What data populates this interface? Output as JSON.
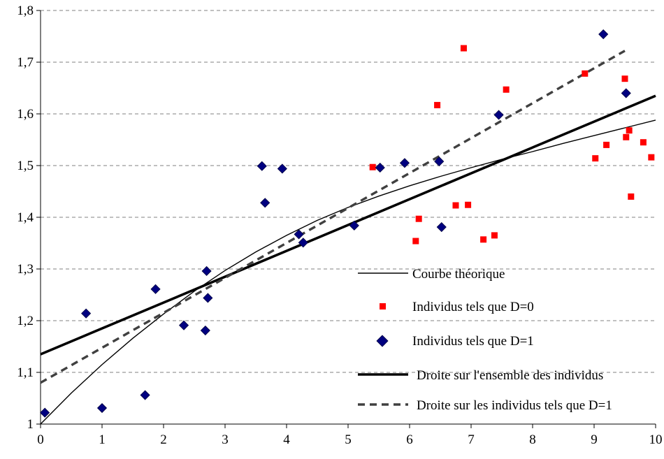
{
  "chart_data": {
    "type": "scatter",
    "title": "",
    "xlabel": "",
    "ylabel": "",
    "xlim": [
      0,
      10
    ],
    "ylim": [
      1,
      1.8
    ],
    "grid": "horizontal dashed",
    "legend_placement": "bottom-right",
    "x_ticks": [
      "0",
      "1",
      "2",
      "3",
      "4",
      "5",
      "6",
      "7",
      "8",
      "9",
      "10"
    ],
    "y_ticks": [
      "1",
      "1,1",
      "1,2",
      "1,3",
      "1,4",
      "1,5",
      "1,6",
      "1,7",
      "1,8"
    ],
    "legend": {
      "theoretical": "Courbe théorique",
      "d0": "Individus tels que D=0",
      "d1": "Individus tels que D=1",
      "fit_all": "Droite sur l'ensemble des individus",
      "fit_d1": "Droite sur les individus tels que D=1"
    },
    "series": [
      {
        "name": "Courbe théorique",
        "kind": "curve",
        "color": "#000000",
        "x": [
          0,
          0.5,
          1,
          1.5,
          2,
          2.5,
          3,
          3.5,
          4,
          4.5,
          5,
          5.5,
          6,
          6.5,
          7,
          7.5,
          8,
          8.5,
          9,
          9.5,
          10
        ],
        "y": [
          1.0,
          1.06,
          1.115,
          1.166,
          1.213,
          1.257,
          1.297,
          1.333,
          1.365,
          1.394,
          1.419,
          1.441,
          1.461,
          1.479,
          1.496,
          1.512,
          1.527,
          1.543,
          1.558,
          1.573,
          1.588
        ]
      },
      {
        "name": "Individus tels que D=0",
        "kind": "points",
        "marker": "square",
        "color": "#ff0000",
        "x": [
          5.4,
          6.1,
          6.15,
          6.45,
          6.75,
          6.88,
          6.95,
          7.2,
          7.38,
          7.57,
          8.85,
          9.02,
          9.2,
          9.5,
          9.52,
          9.57,
          9.6,
          9.8,
          9.93
        ],
        "y": [
          1.497,
          1.354,
          1.397,
          1.617,
          1.423,
          1.727,
          1.424,
          1.357,
          1.365,
          1.647,
          1.678,
          1.514,
          1.54,
          1.668,
          1.555,
          1.568,
          1.44,
          1.545,
          1.516
        ]
      },
      {
        "name": "Individus tels que D=1",
        "kind": "points",
        "marker": "diamond",
        "color": "#000080",
        "x": [
          0.07,
          0.74,
          1.0,
          1.7,
          1.87,
          2.33,
          2.68,
          2.7,
          2.72,
          3.6,
          3.65,
          3.93,
          4.2,
          4.27,
          5.1,
          5.52,
          5.92,
          6.48,
          6.52,
          7.45,
          9.15,
          9.52
        ],
        "y": [
          1.022,
          1.214,
          1.031,
          1.056,
          1.261,
          1.191,
          1.181,
          1.296,
          1.244,
          1.499,
          1.428,
          1.494,
          1.367,
          1.351,
          1.384,
          1.496,
          1.505,
          1.508,
          1.381,
          1.598,
          1.754,
          1.64
        ]
      },
      {
        "name": "Droite sur l'ensemble des individus",
        "kind": "line",
        "color": "#000000",
        "x": [
          0,
          10
        ],
        "y": [
          1.135,
          1.635
        ]
      },
      {
        "name": "Droite sur les individus tels que D=1",
        "kind": "dashed-line",
        "color": "#404040",
        "x": [
          0,
          9.5
        ],
        "y": [
          1.08,
          1.722
        ]
      }
    ]
  }
}
